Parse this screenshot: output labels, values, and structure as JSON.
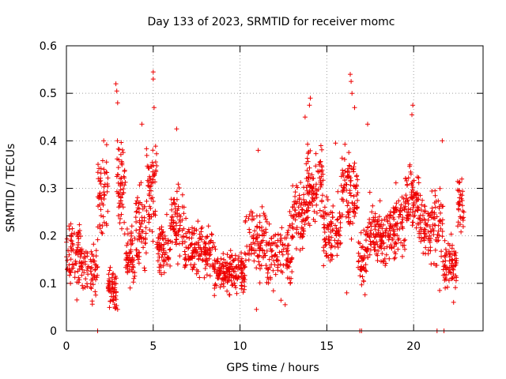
{
  "chart_data": {
    "type": "scatter",
    "title": "Day 133 of 2023, SRMTID for receiver momc",
    "xlabel": "GPS time / hours",
    "ylabel": "SRMTID / TECUs",
    "xlim": [
      0,
      24
    ],
    "ylim": [
      0,
      0.6
    ],
    "x_ticks": [
      0,
      5,
      10,
      15,
      20
    ],
    "x_tick_labels": [
      "0",
      "5",
      "10",
      "15",
      "20"
    ],
    "y_ticks": [
      0,
      0.1,
      0.2,
      0.3,
      0.4,
      0.5,
      0.6
    ],
    "y_tick_labels": [
      "0",
      "0.1",
      "0.2",
      "0.3",
      "0.4",
      "0.5",
      "0.6"
    ],
    "grid": true,
    "marker": "plus",
    "series_color": "#ee0000",
    "outliers": [
      {
        "x": 2.85,
        "y": 0.52
      },
      {
        "x": 2.9,
        "y": 0.505
      },
      {
        "x": 2.95,
        "y": 0.48
      },
      {
        "x": 5.0,
        "y": 0.545
      },
      {
        "x": 5.0,
        "y": 0.53
      },
      {
        "x": 5.05,
        "y": 0.47
      },
      {
        "x": 16.35,
        "y": 0.54
      },
      {
        "x": 16.4,
        "y": 0.525
      },
      {
        "x": 16.45,
        "y": 0.5
      },
      {
        "x": 14.05,
        "y": 0.49
      },
      {
        "x": 14.0,
        "y": 0.475
      },
      {
        "x": 16.6,
        "y": 0.47
      },
      {
        "x": 19.95,
        "y": 0.475
      },
      {
        "x": 19.9,
        "y": 0.455
      },
      {
        "x": 4.35,
        "y": 0.435
      },
      {
        "x": 6.35,
        "y": 0.425
      },
      {
        "x": 17.35,
        "y": 0.435
      },
      {
        "x": 2.15,
        "y": 0.4
      },
      {
        "x": 21.65,
        "y": 0.4
      },
      {
        "x": 11.05,
        "y": 0.38
      },
      {
        "x": 13.75,
        "y": 0.45
      },
      {
        "x": 15.5,
        "y": 0.395
      },
      {
        "x": 2.8,
        "y": 0.05
      },
      {
        "x": 2.95,
        "y": 0.045
      },
      {
        "x": 10.95,
        "y": 0.045
      },
      {
        "x": 12.6,
        "y": 0.055
      },
      {
        "x": 22.3,
        "y": 0.06
      },
      {
        "x": 0.6,
        "y": 0.065
      },
      {
        "x": 21.5,
        "y": 0.085
      },
      {
        "x": 16.15,
        "y": 0.08
      }
    ],
    "bottom_markers": [
      {
        "x": 1.8,
        "y": 0
      },
      {
        "x": 16.9,
        "y": 0
      },
      {
        "x": 17.0,
        "y": 0
      },
      {
        "x": 21.35,
        "y": 0
      },
      {
        "x": 21.75,
        "y": 0
      }
    ],
    "segments": [
      {
        "t0": 0.0,
        "t1": 0.9,
        "mean": 0.155,
        "spread": 0.055,
        "n": 80
      },
      {
        "t0": 0.9,
        "t1": 1.8,
        "mean": 0.13,
        "spread": 0.05,
        "n": 60
      },
      {
        "t0": 1.8,
        "t1": 2.4,
        "mean": 0.28,
        "spread": 0.08,
        "n": 55
      },
      {
        "t0": 2.4,
        "t1": 2.9,
        "mean": 0.09,
        "spread": 0.04,
        "n": 55
      },
      {
        "t0": 2.9,
        "t1": 3.4,
        "mean": 0.3,
        "spread": 0.09,
        "n": 55
      },
      {
        "t0": 3.4,
        "t1": 4.0,
        "mean": 0.16,
        "spread": 0.05,
        "n": 55
      },
      {
        "t0": 4.0,
        "t1": 4.6,
        "mean": 0.21,
        "spread": 0.07,
        "n": 60
      },
      {
        "t0": 4.6,
        "t1": 5.2,
        "mean": 0.3,
        "spread": 0.09,
        "n": 60
      },
      {
        "t0": 5.2,
        "t1": 6.0,
        "mean": 0.17,
        "spread": 0.05,
        "n": 70
      },
      {
        "t0": 6.0,
        "t1": 6.8,
        "mean": 0.23,
        "spread": 0.06,
        "n": 70
      },
      {
        "t0": 6.8,
        "t1": 8.5,
        "mean": 0.17,
        "spread": 0.045,
        "n": 140
      },
      {
        "t0": 8.5,
        "t1": 10.3,
        "mean": 0.125,
        "spread": 0.035,
        "n": 170
      },
      {
        "t0": 10.3,
        "t1": 11.5,
        "mean": 0.19,
        "spread": 0.055,
        "n": 90
      },
      {
        "t0": 11.5,
        "t1": 13.0,
        "mean": 0.16,
        "spread": 0.06,
        "n": 110
      },
      {
        "t0": 13.0,
        "t1": 13.8,
        "mean": 0.24,
        "spread": 0.06,
        "n": 75
      },
      {
        "t0": 13.8,
        "t1": 14.8,
        "mean": 0.3,
        "spread": 0.065,
        "n": 100
      },
      {
        "t0": 14.8,
        "t1": 15.8,
        "mean": 0.21,
        "spread": 0.06,
        "n": 90
      },
      {
        "t0": 15.8,
        "t1": 16.8,
        "mean": 0.3,
        "spread": 0.075,
        "n": 95
      },
      {
        "t0": 16.8,
        "t1": 17.3,
        "mean": 0.15,
        "spread": 0.06,
        "n": 45
      },
      {
        "t0": 17.3,
        "t1": 18.5,
        "mean": 0.2,
        "spread": 0.055,
        "n": 110
      },
      {
        "t0": 18.5,
        "t1": 19.5,
        "mean": 0.22,
        "spread": 0.055,
        "n": 95
      },
      {
        "t0": 19.5,
        "t1": 20.3,
        "mean": 0.28,
        "spread": 0.055,
        "n": 80
      },
      {
        "t0": 20.3,
        "t1": 21.0,
        "mean": 0.22,
        "spread": 0.055,
        "n": 60
      },
      {
        "t0": 21.0,
        "t1": 21.7,
        "mean": 0.23,
        "spread": 0.07,
        "n": 55
      },
      {
        "t0": 21.7,
        "t1": 22.5,
        "mean": 0.14,
        "spread": 0.045,
        "n": 70
      },
      {
        "t0": 22.5,
        "t1": 22.9,
        "mean": 0.26,
        "spread": 0.05,
        "n": 35
      }
    ]
  }
}
